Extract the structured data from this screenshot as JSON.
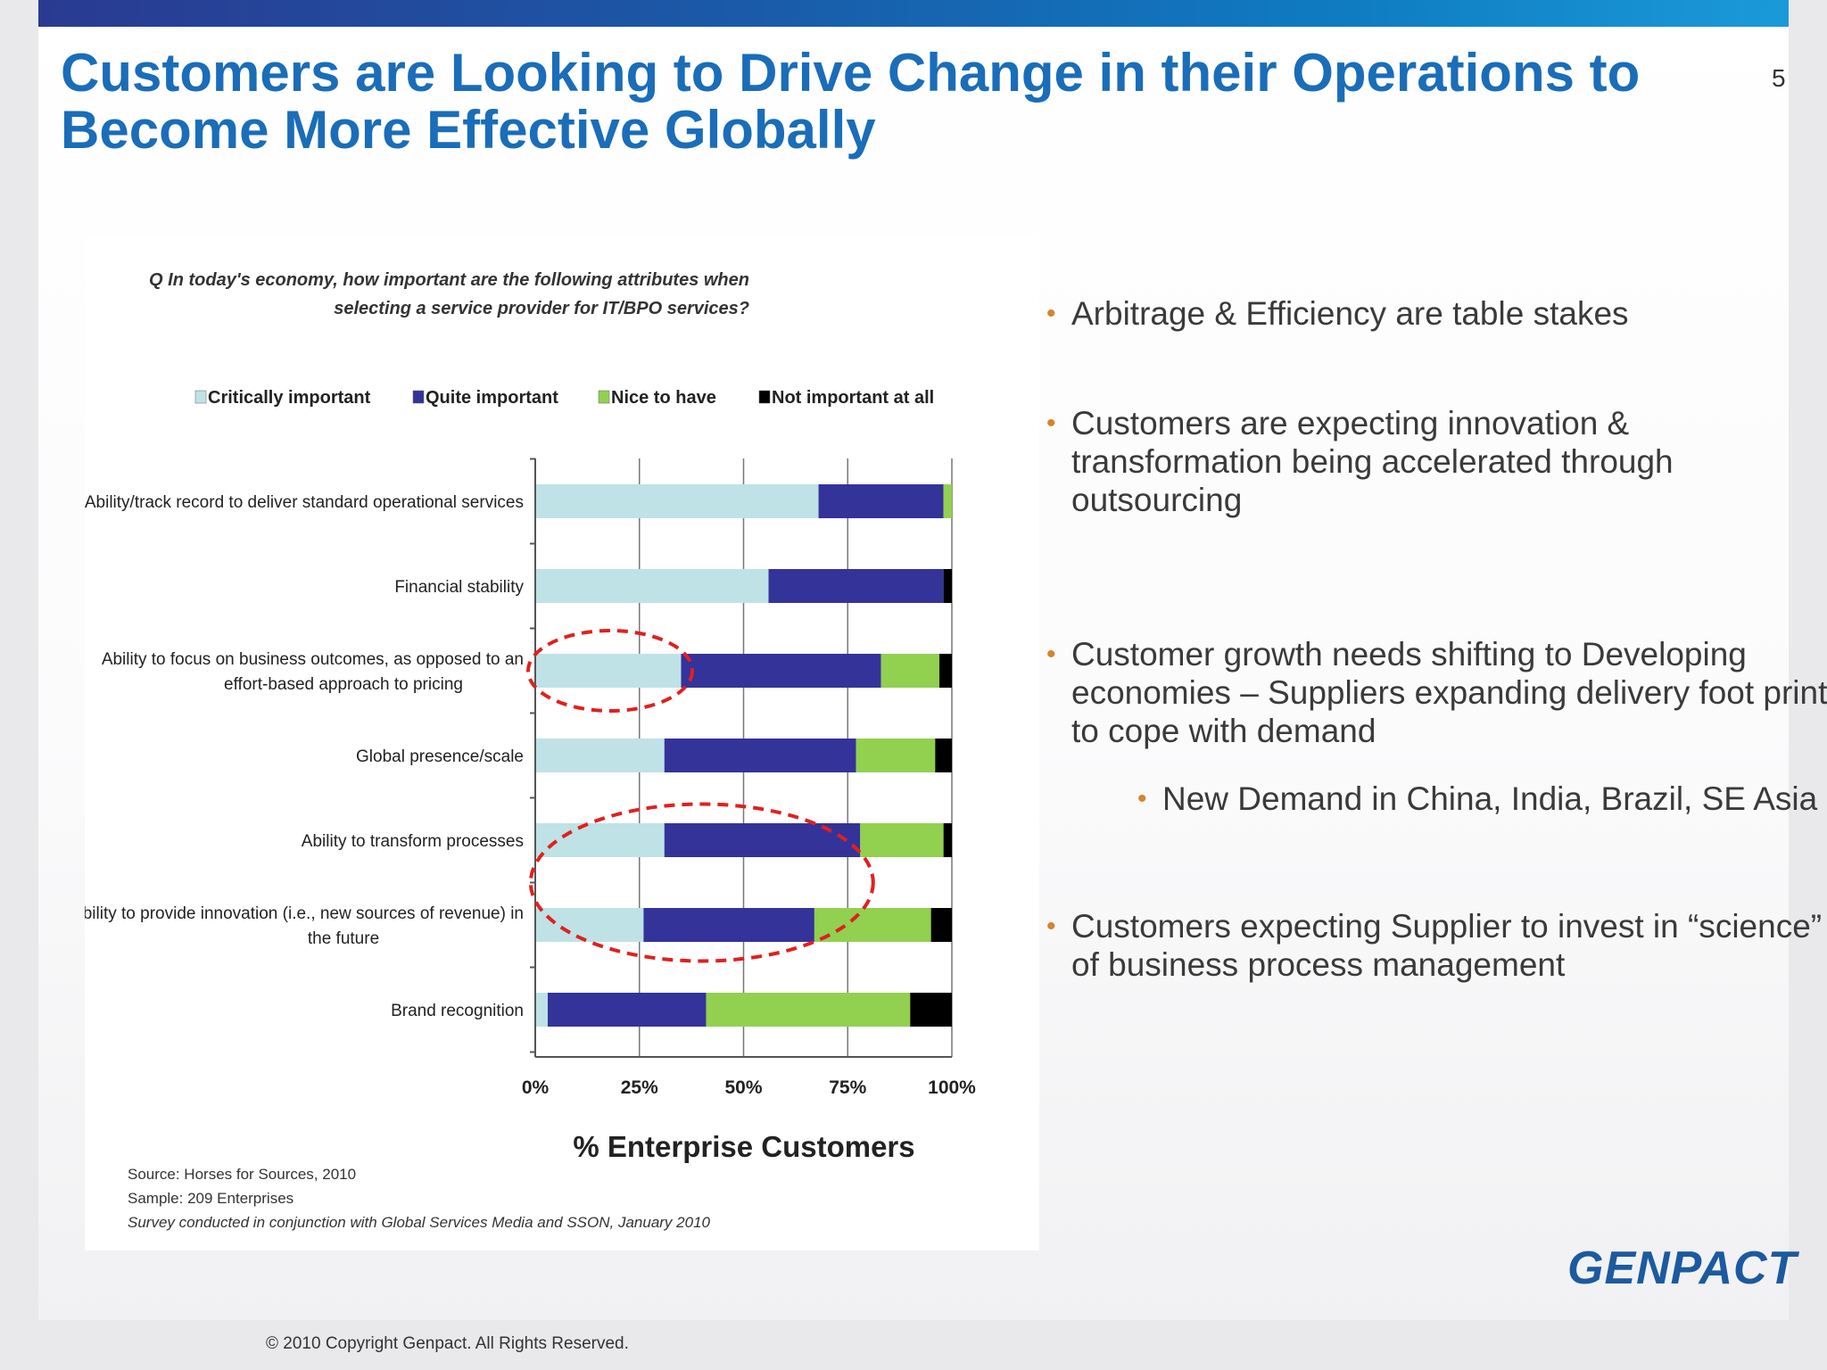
{
  "slide": {
    "title_line1": "Customers are Looking to Drive Change in their Operations to",
    "title_line2": "Become More Effective Globally",
    "page_number": "5",
    "logo": "GENPACT",
    "footer": "© 2010 Copyright Genpact. All Rights Reserved."
  },
  "bullets": [
    {
      "text": "Arbitrage & Efficiency are table stakes"
    },
    {
      "text": "Customers are expecting innovation & transformation being accelerated through outsourcing"
    },
    {
      "text": "Customer growth needs shifting to Developing economies – Suppliers expanding delivery foot print to cope with demand"
    },
    {
      "text": "New Demand in China, India, Brazil, SE Asia"
    },
    {
      "text": "Customers expecting Supplier to invest in “science” of business process management"
    }
  ],
  "chart_data": {
    "type": "bar",
    "orientation": "horizontal",
    "stacked": true,
    "question_line1": "Q In today's economy, how important are the following attributes when",
    "question_line2": "selecting a service provider for IT/BPO services?",
    "categories": [
      "Ability/track record to deliver standard operational services",
      "Financial stability",
      "Ability to focus on business outcomes, as opposed to an effort-based approach to pricing",
      "Global presence/scale",
      "Ability to transform processes",
      "Ability to provide innovation (i.e., new sources of revenue) in the future",
      "Brand recognition"
    ],
    "category_label_lines": [
      [
        "Ability/track record to deliver standard operational services"
      ],
      [
        "Financial stability"
      ],
      [
        "Ability to focus on business outcomes, as opposed to an",
        "effort-based approach to pricing"
      ],
      [
        "Global presence/scale"
      ],
      [
        "Ability to transform processes"
      ],
      [
        "Ability to provide innovation (i.e., new sources of revenue) in",
        "the future"
      ],
      [
        "Brand recognition"
      ]
    ],
    "series": [
      {
        "name": "Critically important",
        "color": "#bfe2e6",
        "values": [
          68,
          56,
          35,
          31,
          31,
          26,
          3
        ]
      },
      {
        "name": "Quite important",
        "color": "#33339a",
        "values": [
          30,
          42,
          48,
          46,
          47,
          41,
          38
        ]
      },
      {
        "name": "Nice to have",
        "color": "#92d050",
        "values": [
          2,
          0,
          14,
          19,
          20,
          28,
          49
        ]
      },
      {
        "name": "Not important at all",
        "color": "#000000",
        "values": [
          0,
          2,
          3,
          4,
          2,
          5,
          10
        ]
      }
    ],
    "xlim": [
      0,
      100
    ],
    "x_ticks": [
      "0%",
      "25%",
      "50%",
      "75%",
      "100%"
    ],
    "xlabel": "% Enterprise Customers",
    "grid": true,
    "legend_position": "top",
    "annotations": {
      "highlight_color": "#e02020",
      "highlighted_categories": [
        "Ability to focus on business outcomes, as opposed to an effort-based approach to pricing",
        "Ability to transform processes",
        "Ability to provide innovation (i.e., new sources of revenue) in the future"
      ]
    },
    "source_notes": [
      "Source: Horses for Sources, 2010",
      "Sample: 209 Enterprises",
      "Survey conducted in conjunction with Global Services Media and SSON, January 2010"
    ]
  }
}
